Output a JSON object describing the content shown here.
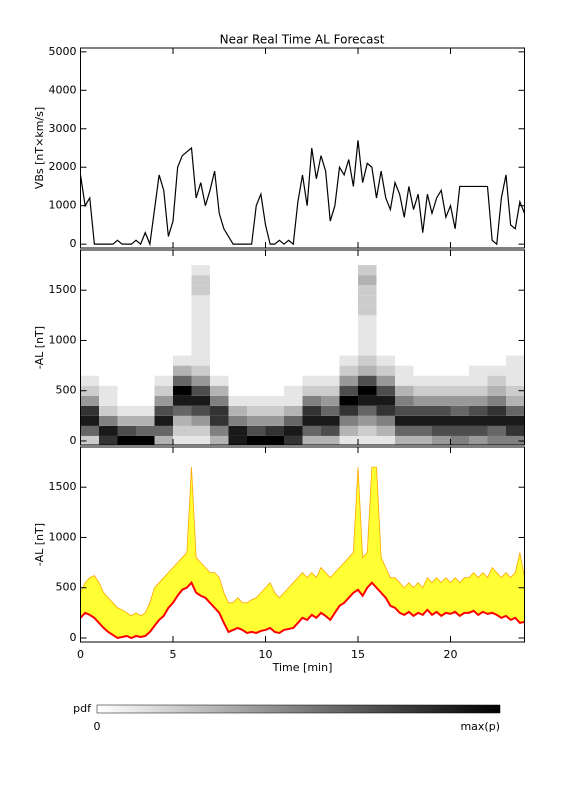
{
  "chart_data": [
    {
      "type": "line",
      "title": "Near Real Time AL Forecast",
      "ylabel": "VBs [nT×km/s]",
      "color": "#000000",
      "xlim": [
        0,
        24
      ],
      "ylim": [
        -100,
        5100
      ],
      "yticks": [
        0,
        1000,
        2000,
        3000,
        4000,
        5000
      ],
      "x": [
        0,
        0.25,
        0.5,
        0.75,
        1,
        1.25,
        1.5,
        1.75,
        2,
        2.25,
        2.5,
        2.75,
        3,
        3.25,
        3.5,
        3.75,
        4,
        4.25,
        4.5,
        4.75,
        5,
        5.25,
        5.5,
        5.75,
        6,
        6.25,
        6.5,
        6.75,
        7,
        7.25,
        7.5,
        7.75,
        8,
        8.25,
        8.5,
        8.75,
        9,
        9.25,
        9.5,
        9.75,
        10,
        10.25,
        10.5,
        10.75,
        11,
        11.25,
        11.5,
        11.75,
        12,
        12.25,
        12.5,
        12.75,
        13,
        13.25,
        13.5,
        13.75,
        14,
        14.25,
        14.5,
        14.75,
        15,
        15.25,
        15.5,
        15.75,
        16,
        16.25,
        16.5,
        16.75,
        17,
        17.25,
        17.5,
        17.75,
        18,
        18.25,
        18.5,
        18.75,
        19,
        19.25,
        19.5,
        19.75,
        20,
        20.25,
        20.5,
        20.75,
        21,
        21.25,
        21.5,
        21.75,
        22,
        22.25,
        22.5,
        22.75,
        23,
        23.25,
        23.5,
        23.75,
        24
      ],
      "values": [
        1800,
        1000,
        1200,
        0,
        0,
        0,
        0,
        0,
        100,
        0,
        0,
        0,
        100,
        0,
        300,
        0,
        900,
        1800,
        1400,
        200,
        600,
        2000,
        2300,
        2400,
        2500,
        1200,
        1600,
        1000,
        1400,
        1900,
        800,
        400,
        200,
        0,
        0,
        0,
        0,
        0,
        1000,
        1300,
        500,
        0,
        0,
        100,
        0,
        100,
        0,
        1100,
        1800,
        1000,
        2500,
        1700,
        2300,
        1900,
        600,
        1000,
        2000,
        1800,
        2200,
        1500,
        2700,
        1600,
        2100,
        2000,
        1200,
        1900,
        1200,
        900,
        1600,
        1300,
        700,
        1500,
        900,
        1300,
        300,
        1300,
        800,
        1200,
        1400,
        700,
        1000,
        400,
        1500,
        1500,
        1500,
        1500,
        1500,
        1500,
        1500,
        100,
        0,
        1200,
        1800,
        500,
        400,
        1100,
        800
      ]
    },
    {
      "type": "heatmap",
      "ylabel": "-AL [nT]",
      "xlim": [
        0,
        24
      ],
      "ylim": [
        -40,
        1900
      ],
      "yticks": [
        0,
        500,
        1000,
        1500
      ],
      "x": [
        0.5,
        1.5,
        2.5,
        3.5,
        4.5,
        5.5,
        6.5,
        7.5,
        8.5,
        9.5,
        10.5,
        11.5,
        12.5,
        13.5,
        14.5,
        15.5,
        16.5,
        17.5,
        18.5,
        19.5,
        20.5,
        21.5,
        22.5,
        23.5
      ],
      "y": [
        0,
        100,
        200,
        300,
        400,
        500,
        600,
        700,
        800,
        900,
        1000,
        1100,
        1200,
        1300,
        1400,
        1500,
        1600,
        1700
      ],
      "z": [
        [
          0.2,
          0.6,
          0.9,
          0.8,
          0.4,
          0.2,
          0.1,
          0,
          0,
          0,
          0,
          0,
          0,
          0,
          0,
          0,
          0,
          0
        ],
        [
          0.8,
          0.9,
          0.5,
          0.2,
          0.1,
          0.1,
          0,
          0,
          0,
          0,
          0,
          0,
          0,
          0,
          0,
          0,
          0,
          0
        ],
        [
          1,
          0.7,
          0.3,
          0.1,
          0,
          0,
          0,
          0,
          0,
          0,
          0,
          0,
          0,
          0,
          0,
          0,
          0,
          0
        ],
        [
          1,
          0.6,
          0.3,
          0.1,
          0,
          0,
          0,
          0,
          0,
          0,
          0,
          0,
          0,
          0,
          0,
          0,
          0,
          0
        ],
        [
          0.3,
          0.6,
          0.9,
          0.7,
          0.4,
          0.2,
          0.1,
          0,
          0,
          0,
          0,
          0,
          0,
          0,
          0,
          0,
          0,
          0
        ],
        [
          0.1,
          0.2,
          0.3,
          0.6,
          0.9,
          1,
          0.6,
          0.3,
          0.1,
          0,
          0,
          0,
          0,
          0,
          0,
          0,
          0,
          0
        ],
        [
          0.1,
          0.2,
          0.4,
          0.7,
          0.9,
          0.7,
          0.4,
          0.2,
          0.1,
          0.1,
          0.1,
          0.1,
          0.1,
          0.1,
          0.1,
          0.2,
          0.2,
          0.1
        ],
        [
          0.3,
          0.5,
          0.8,
          0.8,
          0.5,
          0.3,
          0.1,
          0,
          0,
          0,
          0,
          0,
          0,
          0,
          0,
          0,
          0,
          0
        ],
        [
          0.9,
          0.9,
          0.5,
          0.3,
          0.1,
          0,
          0,
          0,
          0,
          0,
          0,
          0,
          0,
          0,
          0,
          0,
          0,
          0
        ],
        [
          1,
          0.7,
          0.4,
          0.2,
          0.1,
          0,
          0,
          0,
          0,
          0,
          0,
          0,
          0,
          0,
          0,
          0,
          0,
          0
        ],
        [
          1,
          0.8,
          0.4,
          0.2,
          0.1,
          0,
          0,
          0,
          0,
          0,
          0,
          0,
          0,
          0,
          0,
          0,
          0,
          0
        ],
        [
          0.8,
          0.9,
          0.6,
          0.3,
          0.1,
          0.1,
          0,
          0,
          0,
          0,
          0,
          0,
          0,
          0,
          0,
          0,
          0,
          0
        ],
        [
          0.3,
          0.6,
          0.9,
          0.8,
          0.5,
          0.2,
          0.1,
          0,
          0,
          0,
          0,
          0,
          0,
          0,
          0,
          0,
          0,
          0
        ],
        [
          0.3,
          0.7,
          0.9,
          0.6,
          0.4,
          0.2,
          0.1,
          0,
          0,
          0,
          0,
          0,
          0,
          0,
          0,
          0,
          0,
          0
        ],
        [
          0.1,
          0.3,
          0.5,
          0.8,
          1,
          0.7,
          0.4,
          0.2,
          0.1,
          0,
          0,
          0,
          0,
          0,
          0,
          0,
          0,
          0
        ],
        [
          0.1,
          0.2,
          0.4,
          0.6,
          0.9,
          1,
          0.7,
          0.3,
          0.2,
          0.1,
          0.1,
          0.1,
          0.1,
          0.2,
          0.2,
          0.2,
          0.3,
          0.2
        ],
        [
          0.1,
          0.3,
          0.5,
          0.8,
          0.9,
          0.7,
          0.4,
          0.2,
          0.1,
          0,
          0,
          0,
          0,
          0,
          0,
          0,
          0,
          0
        ],
        [
          0.3,
          0.6,
          0.9,
          0.7,
          0.5,
          0.3,
          0.1,
          0.1,
          0,
          0,
          0,
          0,
          0,
          0,
          0,
          0,
          0,
          0
        ],
        [
          0.3,
          0.6,
          0.9,
          0.7,
          0.4,
          0.2,
          0.1,
          0,
          0,
          0,
          0,
          0,
          0,
          0,
          0,
          0,
          0,
          0
        ],
        [
          0.4,
          0.7,
          0.9,
          0.7,
          0.4,
          0.2,
          0.1,
          0,
          0,
          0,
          0,
          0,
          0,
          0,
          0,
          0,
          0,
          0
        ],
        [
          0.5,
          0.7,
          0.9,
          0.6,
          0.4,
          0.2,
          0.1,
          0,
          0,
          0,
          0,
          0,
          0,
          0,
          0,
          0,
          0,
          0
        ],
        [
          0.4,
          0.7,
          0.9,
          0.7,
          0.4,
          0.2,
          0.1,
          0.1,
          0,
          0,
          0,
          0,
          0,
          0,
          0,
          0,
          0,
          0
        ],
        [
          0.5,
          0.6,
          0.9,
          0.8,
          0.5,
          0.3,
          0.2,
          0.1,
          0,
          0,
          0,
          0,
          0,
          0,
          0,
          0,
          0,
          0
        ],
        [
          0.5,
          0.8,
          0.9,
          0.6,
          0.3,
          0.2,
          0.1,
          0.1,
          0.1,
          0,
          0,
          0,
          0,
          0,
          0,
          0,
          0,
          0
        ]
      ],
      "colorbar": {
        "label": "pdf",
        "min_label": "0",
        "max_label": "max(p)"
      }
    },
    {
      "type": "band",
      "ylabel": "-AL [nT]",
      "xlabel": "Time [min]",
      "xlim": [
        0,
        24
      ],
      "xticks": [
        0,
        5,
        10,
        15,
        20
      ],
      "ylim": [
        -40,
        1900
      ],
      "yticks": [
        0,
        500,
        1000,
        1500
      ],
      "fill": "#ffff33",
      "x": [
        0,
        0.25,
        0.5,
        0.75,
        1,
        1.25,
        1.5,
        1.75,
        2,
        2.25,
        2.5,
        2.75,
        3,
        3.25,
        3.5,
        3.75,
        4,
        4.25,
        4.5,
        4.75,
        5,
        5.25,
        5.5,
        5.75,
        6,
        6.25,
        6.5,
        6.75,
        7,
        7.25,
        7.5,
        7.75,
        8,
        8.25,
        8.5,
        8.75,
        9,
        9.25,
        9.5,
        9.75,
        10,
        10.25,
        10.5,
        10.75,
        11,
        11.25,
        11.5,
        11.75,
        12,
        12.25,
        12.5,
        12.75,
        13,
        13.25,
        13.5,
        13.75,
        14,
        14.25,
        14.5,
        14.75,
        15,
        15.25,
        15.5,
        15.75,
        16,
        16.25,
        16.5,
        16.75,
        17,
        17.25,
        17.5,
        17.75,
        18,
        18.25,
        18.5,
        18.75,
        19,
        19.25,
        19.5,
        19.75,
        20,
        20.25,
        20.5,
        20.75,
        21,
        21.25,
        21.5,
        21.75,
        22,
        22.25,
        22.5,
        22.75,
        23,
        23.25,
        23.5,
        23.75,
        24
      ],
      "upper": {
        "color": "#ffa500",
        "values": [
          450,
          550,
          600,
          620,
          550,
          450,
          400,
          350,
          300,
          280,
          250,
          220,
          250,
          220,
          250,
          350,
          500,
          550,
          600,
          650,
          700,
          750,
          800,
          850,
          1700,
          800,
          750,
          700,
          650,
          650,
          600,
          450,
          350,
          350,
          400,
          350,
          350,
          380,
          400,
          450,
          500,
          550,
          450,
          400,
          450,
          500,
          550,
          600,
          650,
          600,
          650,
          600,
          700,
          650,
          600,
          650,
          700,
          750,
          800,
          850,
          1700,
          800,
          850,
          1700,
          1700,
          800,
          700,
          600,
          600,
          550,
          500,
          550,
          500,
          550,
          500,
          600,
          550,
          600,
          550,
          600,
          550,
          600,
          550,
          600,
          600,
          650,
          600,
          650,
          600,
          700,
          650,
          600,
          650,
          600,
          650,
          850,
          600
        ]
      },
      "median": {
        "color": "#ff0000",
        "values": [
          200,
          250,
          230,
          200,
          150,
          100,
          60,
          30,
          0,
          10,
          20,
          0,
          20,
          10,
          20,
          60,
          120,
          180,
          220,
          300,
          350,
          420,
          480,
          500,
          550,
          450,
          420,
          400,
          350,
          300,
          250,
          150,
          60,
          80,
          100,
          80,
          50,
          60,
          50,
          70,
          80,
          100,
          60,
          50,
          80,
          90,
          100,
          150,
          200,
          180,
          230,
          200,
          250,
          220,
          180,
          250,
          320,
          350,
          400,
          450,
          480,
          420,
          500,
          550,
          500,
          450,
          400,
          320,
          300,
          250,
          230,
          260,
          220,
          250,
          230,
          280,
          230,
          260,
          220,
          250,
          240,
          260,
          220,
          250,
          250,
          270,
          230,
          260,
          240,
          250,
          230,
          200,
          220,
          180,
          200,
          150,
          160
        ]
      }
    }
  ]
}
